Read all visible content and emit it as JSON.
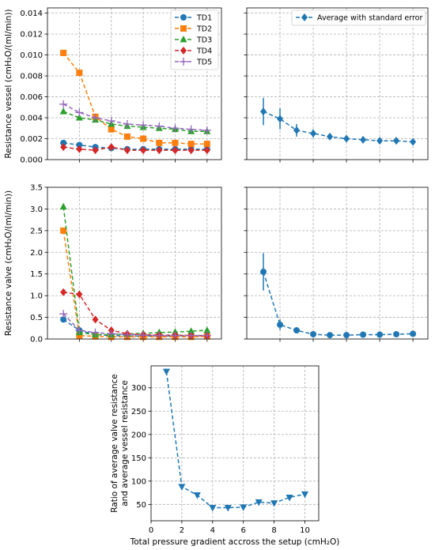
{
  "chart_data": [
    {
      "type": "line",
      "panel": "top-left",
      "title": "",
      "xlabel": "",
      "ylabel": "Resistance vessel (cmH₂O/(ml/min))",
      "xlim": [
        0,
        10.9
      ],
      "ylim": [
        0,
        0.0145
      ],
      "x": [
        1,
        2,
        3,
        4,
        5,
        6,
        7,
        8,
        9,
        10
      ],
      "yticks": [
        0.0,
        0.002,
        0.004,
        0.006,
        0.008,
        0.01,
        0.012,
        0.014
      ],
      "ytick_labels": [
        "0.000",
        "0.002",
        "0.004",
        "0.006",
        "0.008",
        "0.010",
        "0.012",
        "0.014"
      ],
      "grid": true,
      "legend_position": "top-right",
      "series": [
        {
          "name": "TD1",
          "color": "#1f77b4",
          "marker": "circle",
          "values": [
            0.0016,
            0.0014,
            0.0012,
            0.0011,
            0.001,
            0.001,
            0.001,
            0.001,
            0.001,
            0.001
          ]
        },
        {
          "name": "TD2",
          "color": "#ff7f0e",
          "marker": "square",
          "values": [
            0.0102,
            0.0083,
            0.0041,
            0.0029,
            0.0022,
            0.002,
            0.0016,
            0.0016,
            0.0015,
            0.0015
          ]
        },
        {
          "name": "TD3",
          "color": "#2ca02c",
          "marker": "triangle-up",
          "values": [
            0.0046,
            0.004,
            0.0038,
            0.0034,
            0.0032,
            0.0031,
            0.003,
            0.0029,
            0.0027,
            0.0027
          ]
        },
        {
          "name": "TD4",
          "color": "#d62728",
          "marker": "diamond",
          "values": [
            0.0012,
            0.001,
            0.0009,
            0.0012,
            0.0009,
            0.0009,
            0.0009,
            0.0009,
            0.0009,
            0.0009
          ]
        },
        {
          "name": "TD5",
          "color": "#9467bd",
          "marker": "plus",
          "values": [
            0.0053,
            0.0045,
            0.004,
            0.0037,
            0.0034,
            0.0033,
            0.0032,
            0.003,
            0.0029,
            0.0028
          ]
        }
      ]
    },
    {
      "type": "line",
      "panel": "top-right",
      "title": "",
      "xlabel": "",
      "ylabel": "",
      "xlim": [
        0,
        10.9
      ],
      "ylim": [
        0,
        0.0145
      ],
      "x": [
        1,
        2,
        3,
        4,
        5,
        6,
        7,
        8,
        9,
        10
      ],
      "grid": true,
      "legend_position": "top-right",
      "series": [
        {
          "name": "Average with standard error",
          "color": "#1f77b4",
          "marker": "diamond",
          "values": [
            0.0046,
            0.0039,
            0.0028,
            0.0025,
            0.0022,
            0.002,
            0.0019,
            0.0018,
            0.0018,
            0.0017
          ],
          "errors": [
            0.0013,
            0.001,
            0.0006,
            0.0004,
            0.0003,
            0.0002,
            0.0002,
            0.0002,
            0.0002,
            0.0002
          ]
        }
      ]
    },
    {
      "type": "line",
      "panel": "middle-left",
      "title": "",
      "xlabel": "",
      "ylabel": "Resistance valve (cmH₂O/(ml/min))",
      "xlim": [
        0,
        10.9
      ],
      "ylim": [
        0,
        3.5
      ],
      "x": [
        1,
        2,
        3,
        4,
        5,
        6,
        7,
        8,
        9,
        10
      ],
      "yticks": [
        0.0,
        0.5,
        1.0,
        1.5,
        2.0,
        2.5,
        3.0,
        3.5
      ],
      "ytick_labels": [
        "0.0",
        "0.5",
        "1.0",
        "1.5",
        "2.0",
        "2.5",
        "3.0",
        "3.5"
      ],
      "grid": true,
      "series": [
        {
          "name": "TD1",
          "color": "#1f77b4",
          "marker": "circle",
          "values": [
            0.45,
            0.2,
            0.1,
            0.08,
            0.07,
            0.07,
            0.07,
            0.07,
            0.08,
            0.08
          ]
        },
        {
          "name": "TD2",
          "color": "#ff7f0e",
          "marker": "square",
          "values": [
            2.5,
            0.08,
            0.06,
            0.05,
            0.05,
            0.05,
            0.05,
            0.05,
            0.05,
            0.06
          ]
        },
        {
          "name": "TD3",
          "color": "#2ca02c",
          "marker": "triangle-up",
          "values": [
            3.05,
            0.15,
            0.1,
            0.1,
            0.12,
            0.13,
            0.15,
            0.16,
            0.18,
            0.2
          ]
        },
        {
          "name": "TD4",
          "color": "#d62728",
          "marker": "diamond",
          "values": [
            1.08,
            1.03,
            0.45,
            0.2,
            0.12,
            0.1,
            0.09,
            0.09,
            0.08,
            0.07
          ]
        },
        {
          "name": "TD5",
          "color": "#9467bd",
          "marker": "plus",
          "values": [
            0.58,
            0.2,
            0.15,
            0.12,
            0.1,
            0.09,
            0.08,
            0.08,
            0.08,
            0.08
          ]
        }
      ]
    },
    {
      "type": "line",
      "panel": "middle-right",
      "title": "",
      "xlabel": "",
      "ylabel": "",
      "xlim": [
        0,
        10.9
      ],
      "ylim": [
        0,
        3.5
      ],
      "x": [
        1,
        2,
        3,
        4,
        5,
        6,
        7,
        8,
        9,
        10
      ],
      "grid": true,
      "series": [
        {
          "name": "",
          "color": "#1f77b4",
          "marker": "circle",
          "values": [
            1.55,
            0.33,
            0.2,
            0.11,
            0.09,
            0.09,
            0.1,
            0.1,
            0.11,
            0.12
          ],
          "errors": [
            0.43,
            0.12,
            0.04,
            0.02,
            0.01,
            0.01,
            0.01,
            0.01,
            0.01,
            0.01
          ]
        }
      ]
    },
    {
      "type": "line",
      "panel": "bottom",
      "title": "",
      "xlabel": "Total pressure gradient accross the setup (cmH₂O)",
      "ylabel_lines": [
        "Ratio of average valve resistance",
        "and average vessel resistance"
      ],
      "xlim": [
        0,
        10.9
      ],
      "ylim": [
        15,
        347
      ],
      "x": [
        1,
        2,
        3,
        4,
        5,
        6,
        7,
        8,
        9,
        10
      ],
      "xticks": [
        0,
        2,
        4,
        6,
        8,
        10
      ],
      "xtick_labels": [
        "0",
        "2",
        "4",
        "6",
        "8",
        "10"
      ],
      "yticks": [
        50,
        100,
        150,
        200,
        250,
        300
      ],
      "ytick_labels": [
        "50",
        "100",
        "150",
        "200",
        "250",
        "300"
      ],
      "grid": true,
      "series": [
        {
          "name": "",
          "color": "#1f77b4",
          "marker": "triangle-down",
          "values": [
            335,
            88,
            70,
            43,
            43,
            44,
            55,
            53,
            65,
            72
          ]
        }
      ]
    }
  ]
}
